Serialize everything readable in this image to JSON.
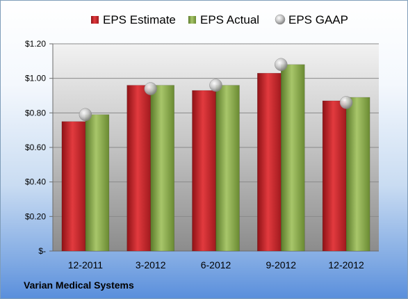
{
  "chart_data": {
    "type": "bar",
    "categories": [
      "12-2011",
      "3-2012",
      "6-2012",
      "9-2012",
      "12-2012"
    ],
    "series": [
      {
        "name": "EPS Estimate",
        "kind": "bar",
        "color": "#c0262a",
        "values": [
          0.75,
          0.96,
          0.93,
          1.03,
          0.87
        ]
      },
      {
        "name": "EPS Actual",
        "kind": "bar",
        "color": "#7fa043",
        "values": [
          0.79,
          0.96,
          0.96,
          1.08,
          0.89
        ]
      },
      {
        "name": "EPS GAAP",
        "kind": "marker",
        "color": "#b8b8b8",
        "values": [
          0.79,
          0.94,
          0.96,
          1.08,
          0.86
        ]
      }
    ],
    "ylim": [
      0,
      1.2
    ],
    "ytick_labels": [
      "$-",
      "$0.20",
      "$0.40",
      "$0.60",
      "$0.80",
      "$1.00",
      "$1.20"
    ],
    "grid": true,
    "legend_position": "top",
    "footer": "Varian Medical Systems"
  }
}
